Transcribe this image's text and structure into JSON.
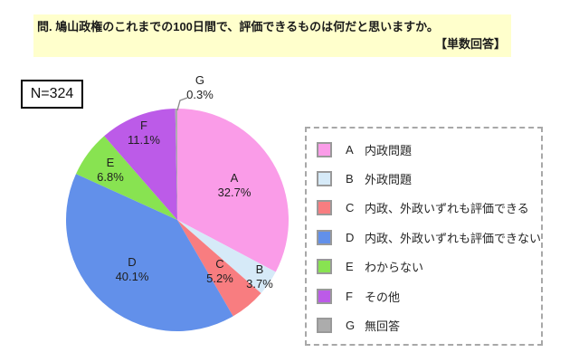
{
  "header": {
    "question": "問. 鳩山政権のこれまでの100日間で、評価できるものは何だと思いますか。",
    "answer_type": "【単数回答】",
    "background_color": "#FFFFCC"
  },
  "sample_size": {
    "label": "N=324"
  },
  "chart_data": {
    "type": "pie",
    "title": "問. 鳩山政権のこれまでの100日間で、評価できるものは何だと思いますか。",
    "subtitle": "【単数回答】",
    "sample_label": "N=324",
    "unit": "%",
    "direction": "clockwise",
    "start_angle": "12-o'clock",
    "legend_position": "right",
    "slices": [
      {
        "id": "A",
        "label": "内政問題",
        "value": 32.7,
        "percent_text": "32.7%",
        "color": "#FA9CE8",
        "label_radius": 0.6
      },
      {
        "id": "B",
        "label": "外政問題",
        "value": 3.7,
        "percent_text": "3.7%",
        "color": "#D6EAF8",
        "label_radius": 0.9
      },
      {
        "id": "C",
        "label": "内政、外政いずれも評価できる",
        "value": 5.2,
        "percent_text": "5.2%",
        "color": "#F87D80",
        "label_radius": 0.6
      },
      {
        "id": "D",
        "label": "内政、外政いずれも評価できない",
        "value": 40.1,
        "percent_text": "40.1%",
        "color": "#6290EA",
        "label_radius": 0.6
      },
      {
        "id": "E",
        "label": "わからない",
        "value": 6.8,
        "percent_text": "6.8%",
        "color": "#88E351",
        "label_radius": 0.75
      },
      {
        "id": "F",
        "label": "その他",
        "value": 11.1,
        "percent_text": "11.1%",
        "color": "#BC5BE8",
        "label_radius": 0.84
      },
      {
        "id": "G",
        "label": "無回答",
        "value": 0.3,
        "percent_text": "0.3%",
        "color": "#ACACAC",
        "callout": true
      }
    ]
  }
}
